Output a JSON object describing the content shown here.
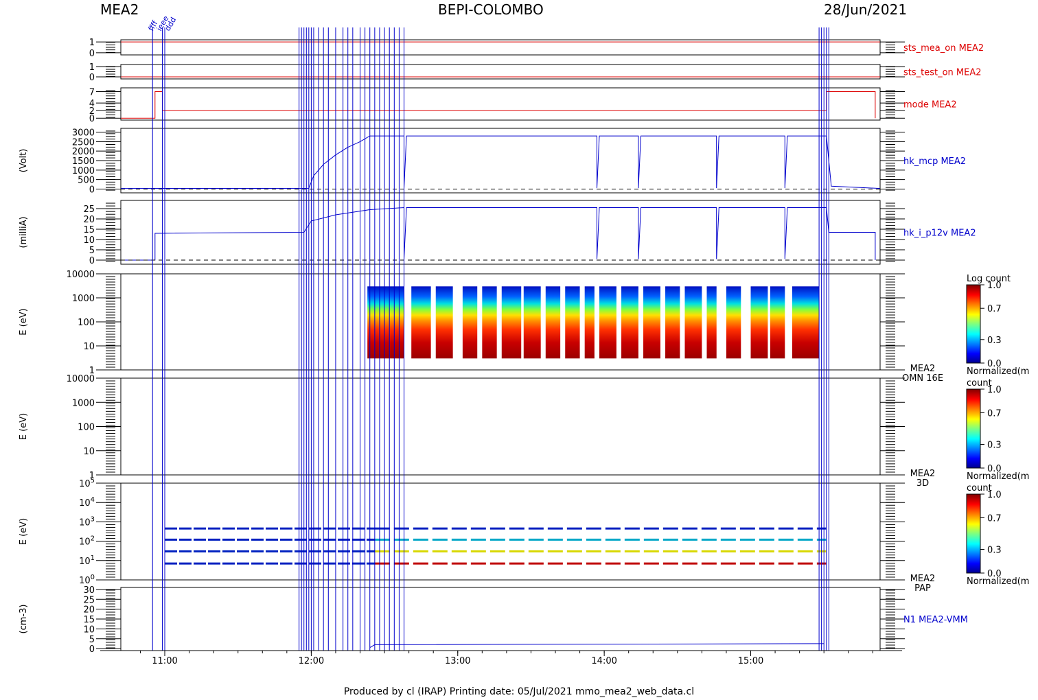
{
  "header": {
    "left": "MEA2",
    "center": "BEPI-COLOMBO",
    "right": "28/Jun/2021"
  },
  "footer": {
    "text": "Produced by cl (IRAP)    Printing date: 05/Jul/2021    mmo_mea2_web_data.cl"
  },
  "colors": {
    "red_trace": "#dd0000",
    "blue_trace": "#0000cc",
    "event_lines": "#0000cc"
  },
  "chart_data": {
    "type": "multi-panel time series",
    "x_axis": {
      "unit": "UT",
      "tick_labels": [
        "11:00",
        "12:00",
        "13:00",
        "14:00",
        "15:00"
      ],
      "range": [
        "10:42",
        "15:53"
      ]
    },
    "panels": [
      {
        "name": "sts_mea_on MEA2",
        "ylabel": "",
        "color": "#dd0000",
        "yticks": [
          "0",
          "1"
        ],
        "ylim": [
          -0.2,
          1.2
        ],
        "series": [
          {
            "t": [
              "10:42",
              "15:53"
            ],
            "v": [
              1,
              1
            ]
          }
        ]
      },
      {
        "name": "sts_test_on MEA2",
        "ylabel": "",
        "color": "#dd0000",
        "yticks": [
          "0",
          "1"
        ],
        "ylim": [
          -0.2,
          1.2
        ],
        "series": [
          {
            "t": [
              "10:42",
              "15:53"
            ],
            "v": [
              0,
              0
            ]
          }
        ]
      },
      {
        "name": "mode MEA2",
        "ylabel": "",
        "color": "#dd0000",
        "yticks": [
          "0",
          "2",
          "4",
          "7"
        ],
        "ylim": [
          -0.5,
          8
        ],
        "series": [
          {
            "t": [
              "10:42",
              "10:56",
              "10:56",
              "10:59",
              "10:59",
              "15:31",
              "15:31",
              "15:51",
              "15:51"
            ],
            "v": [
              0,
              0,
              7,
              7,
              2,
              2,
              7,
              7,
              0
            ]
          }
        ]
      },
      {
        "name": "hk_mcp MEA2",
        "ylabel": "(Volt)",
        "color": "#0000cc",
        "yticks": [
          "0",
          "500",
          "1000",
          "1500",
          "2000",
          "2500",
          "3000"
        ],
        "ylim": [
          -200,
          3200
        ],
        "series": [
          {
            "t": [
              "10:42",
              "11:59",
              "12:01",
              "12:05",
              "12:10",
              "12:15",
              "12:20",
              "12:24",
              "12:38",
              "12:38",
              "12:39",
              "13:57",
              "13:57",
              "13:58",
              "14:14",
              "14:14",
              "14:15",
              "14:46",
              "14:46",
              "14:47",
              "15:14",
              "15:14",
              "15:15",
              "15:31",
              "15:33",
              "15:53"
            ],
            "v": [
              30,
              40,
              700,
              1300,
              1800,
              2200,
              2500,
              2800,
              2800,
              50,
              2800,
              2800,
              50,
              2800,
              2800,
              50,
              2800,
              2800,
              50,
              2800,
              2800,
              50,
              2800,
              2800,
              150,
              30
            ]
          }
        ]
      },
      {
        "name": "hk_i_p12v MEA2",
        "ylabel": "(milliA)",
        "color": "#0000cc",
        "yticks": [
          "0",
          "5",
          "10",
          "15",
          "20",
          "25"
        ],
        "ylim": [
          -2,
          29
        ],
        "series": [
          {
            "t": [
              "10:42",
              "10:56",
              "10:56",
              "11:57",
              "12:00",
              "12:10",
              "12:24",
              "12:38",
              "12:38",
              "12:39",
              "13:57",
              "13:57",
              "13:58",
              "14:14",
              "14:14",
              "14:15",
              "14:46",
              "14:46",
              "14:47",
              "15:14",
              "15:14",
              "15:15",
              "15:31",
              "15:32",
              "15:51",
              "15:51"
            ],
            "v": [
              0,
              0,
              13,
              13.5,
              19,
              22,
              24.5,
              25.5,
              0.5,
              25.5,
              25.5,
              0.5,
              25.5,
              25.5,
              0.5,
              25.5,
              25.5,
              0.5,
              25.5,
              25.5,
              0.5,
              25.5,
              25.5,
              13.5,
              13.5,
              0
            ]
          }
        ]
      },
      {
        "name": "MEA2 OMN 16E",
        "ylabel": "E (eV)",
        "type": "spectrogram",
        "yticks": [
          "1",
          "10",
          "100",
          "1000",
          "10000"
        ],
        "ylim": [
          1,
          10000
        ],
        "energy_range_eV": [
          3,
          3000
        ],
        "colorbar": {
          "title": "Log count",
          "ticks": [
            "0.0",
            "0.3",
            "0.7",
            "1.0"
          ],
          "label": "Normalized(m"
        },
        "data_intervals": [
          [
            "12:23",
            "12:38"
          ],
          [
            "12:41",
            "12:49"
          ],
          [
            "12:51",
            "12:58"
          ],
          [
            "13:02",
            "13:08"
          ],
          [
            "13:10",
            "13:16"
          ],
          [
            "13:18",
            "13:26"
          ],
          [
            "13:27",
            "13:34"
          ],
          [
            "13:36",
            "13:42"
          ],
          [
            "13:44",
            "13:50"
          ],
          [
            "13:52",
            "13:56"
          ],
          [
            "13:58",
            "14:05"
          ],
          [
            "14:07",
            "14:14"
          ],
          [
            "14:16",
            "14:23"
          ],
          [
            "14:25",
            "14:31"
          ],
          [
            "14:33",
            "14:40"
          ],
          [
            "14:42",
            "14:46"
          ],
          [
            "14:50",
            "14:56"
          ],
          [
            "15:00",
            "15:07"
          ],
          [
            "15:08",
            "15:14"
          ],
          [
            "15:17",
            "15:28"
          ]
        ]
      },
      {
        "name": "MEA2 3D",
        "ylabel": "E (eV)",
        "type": "spectrogram",
        "yticks": [
          "1",
          "10",
          "100",
          "1000",
          "10000"
        ],
        "ylim": [
          1,
          10000
        ],
        "colorbar": {
          "title": "count",
          "ticks": [
            "0.0",
            "0.3",
            "0.7",
            "1.0"
          ],
          "label": "Normalized(m"
        },
        "data_intervals": []
      },
      {
        "name": "MEA2 PAP",
        "ylabel": "E (eV)",
        "type": "spectrogram",
        "yticks": [
          "10^0",
          "10^1",
          "10^2",
          "10^3",
          "10^4",
          "10^5"
        ],
        "ylim": [
          1,
          100000
        ],
        "colorbar": {
          "title": "count",
          "ticks": [
            "0.0",
            "0.3",
            "0.7",
            "1.0"
          ],
          "label": "Normalized(m"
        },
        "energy_levels_eV": [
          7,
          30,
          120,
          450
        ],
        "level_colors_after_1226": [
          "#c00000",
          "#d8d800",
          "#00a8c8",
          "#0020c0"
        ],
        "level_color_before": "#0020c0",
        "data_range": [
          "11:00",
          "15:31"
        ]
      },
      {
        "name": "N1 MEA2-VMM",
        "ylabel": "(cm-3)",
        "color": "#0000cc",
        "yticks": [
          "0",
          "5",
          "10",
          "15",
          "20",
          "25",
          "30"
        ],
        "ylim": [
          -1,
          31
        ],
        "series": [
          {
            "t": [
              "12:24",
              "12:26",
              "15:30"
            ],
            "v": [
              0.5,
              2,
              2.5
            ]
          }
        ]
      }
    ],
    "event_lines": {
      "color": "#0000cc",
      "times": [
        "10:55",
        "10:59",
        "11:00",
        "11:55",
        "11:56",
        "11:57",
        "11:58",
        "11:59",
        "12:00",
        "12:01",
        "12:03",
        "12:05",
        "12:07",
        "12:10",
        "12:13",
        "12:15",
        "12:17",
        "12:20",
        "12:22",
        "12:24",
        "12:26",
        "12:28",
        "12:30",
        "12:32",
        "12:34",
        "12:36",
        "12:38",
        "15:28",
        "15:29",
        "15:30",
        "15:31",
        "15:32"
      ],
      "labels_top": [
        "ffff",
        "ieee",
        "ddd"
      ]
    }
  }
}
